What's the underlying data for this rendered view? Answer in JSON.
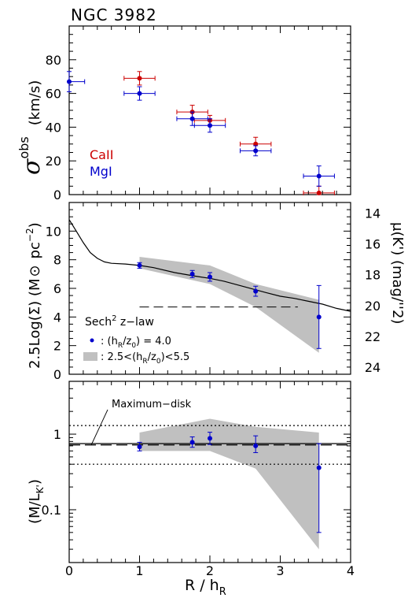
{
  "title": "NGC 3982",
  "x_axis": {
    "label_main": "R / h",
    "label_sub": "R",
    "range": [
      0,
      4
    ],
    "ticks": [
      "0",
      "1",
      "2",
      "3",
      "4"
    ]
  },
  "colors": {
    "CaII": "#cc0000",
    "MgI": "#0000cc",
    "band": "#c0c0c0"
  },
  "chart_data": [
    {
      "type": "scatter",
      "panel": "velocity-dispersion",
      "ylabel_symbol": "σ",
      "ylabel_sup": "obs",
      "ylabel_unit": "(km/s)",
      "ylim": [
        0,
        100
      ],
      "yticks": [
        "0",
        "20",
        "40",
        "60",
        "80"
      ],
      "legend": {
        "placement": "bottom-left",
        "items": [
          "CaII",
          "MgI"
        ]
      },
      "series": [
        {
          "name": "CaII",
          "points": [
            {
              "x": 1.0,
              "y": 69,
              "xerr": 0.22,
              "yerr": 4
            },
            {
              "x": 1.75,
              "y": 49,
              "xerr": 0.22,
              "yerr": 4
            },
            {
              "x": 2.0,
              "y": 44,
              "xerr": 0.22,
              "yerr": 3
            },
            {
              "x": 2.65,
              "y": 30,
              "xerr": 0.22,
              "yerr": 4
            },
            {
              "x": 3.55,
              "y": 1,
              "xerr": 0.22,
              "yerr": 4
            }
          ]
        },
        {
          "name": "MgI",
          "points": [
            {
              "x": 0.0,
              "y": 67,
              "xerr": 0.22,
              "yerr": 6
            },
            {
              "x": 1.0,
              "y": 60,
              "xerr": 0.22,
              "yerr": 4
            },
            {
              "x": 1.75,
              "y": 45,
              "xerr": 0.22,
              "yerr": 4
            },
            {
              "x": 2.0,
              "y": 41,
              "xerr": 0.22,
              "yerr": 4
            },
            {
              "x": 2.65,
              "y": 26,
              "xerr": 0.22,
              "yerr": 3
            },
            {
              "x": 3.55,
              "y": 11,
              "xerr": 0.22,
              "yerr": 6
            }
          ]
        }
      ]
    },
    {
      "type": "line",
      "panel": "surface-density",
      "ylabel": "2.5Log(Σ)  (M",
      "ylabel_sun": "⊙",
      "ylabel_end": "pc",
      "ylabel_exp": "−2",
      "ylabel_close": ")",
      "ylim": [
        0,
        12
      ],
      "yticks": [
        "0",
        "2",
        "4",
        "6",
        "8",
        "10"
      ],
      "y2label": "μ(K')  (mag/''2)",
      "y2ticks": [
        "14",
        "16",
        "18",
        "20",
        "22",
        "24"
      ],
      "y2values": [
        14,
        16,
        18,
        20,
        22,
        24
      ],
      "profile_x": [
        0.0,
        0.1,
        0.2,
        0.3,
        0.4,
        0.5,
        0.6,
        0.8,
        1.0,
        1.2,
        1.5,
        1.8,
        2.0,
        2.2,
        2.5,
        2.8,
        3.0,
        3.2,
        3.4,
        3.6,
        3.8,
        4.0
      ],
      "profile_y": [
        10.8,
        10.0,
        9.2,
        8.5,
        8.1,
        7.85,
        7.75,
        7.7,
        7.6,
        7.45,
        7.1,
        6.85,
        6.7,
        6.5,
        6.1,
        5.7,
        5.45,
        5.3,
        5.1,
        4.9,
        4.6,
        4.4
      ],
      "dashed_level": {
        "y": 4.7,
        "x_range": [
          1.0,
          3.25
        ]
      },
      "band_x": [
        1.0,
        2.0,
        2.65,
        3.55
      ],
      "band_upper": [
        8.2,
        7.6,
        6.3,
        5.2
      ],
      "band_lower": [
        7.4,
        6.3,
        4.7,
        1.5
      ],
      "points": [
        {
          "x": 1.0,
          "y": 7.6,
          "yerr": 0.2
        },
        {
          "x": 1.75,
          "y": 7.0,
          "yerr": 0.25
        },
        {
          "x": 2.0,
          "y": 6.8,
          "yerr": 0.3
        },
        {
          "x": 2.65,
          "y": 5.8,
          "yerr": 0.35
        },
        {
          "x": 3.55,
          "y": 4.0,
          "yerr": 2.2
        }
      ],
      "legend": {
        "title": "Sech",
        "title_sup": "2",
        "title_end": " z−law",
        "point_label": ": (h",
        "point_label_sub1": "R",
        "point_label_mid": "/z",
        "point_label_sub2": "0",
        "point_label_end": ") = 4.0",
        "band_label": ": 2.5<(h",
        "band_label_sub1": "R",
        "band_label_mid": "/z",
        "band_label_sub2": "0",
        "band_label_end": ")<5.5"
      }
    },
    {
      "type": "scatter",
      "panel": "mass-to-light",
      "ylabel": "(M/L",
      "ylabel_sub": "K'",
      "ylabel_close": ")",
      "yscale": "log",
      "ylim": [
        0.02,
        5
      ],
      "yticks": [
        "0.1",
        "1"
      ],
      "ytick_values": [
        0.1,
        1
      ],
      "annotation": "Maximum−disk",
      "solid_level": 0.75,
      "dashed_level": 0.72,
      "dotted_levels": [
        1.3,
        0.4
      ],
      "band_x": [
        1.0,
        2.0,
        2.65,
        3.55
      ],
      "band_upper": [
        1.05,
        1.6,
        1.25,
        1.05
      ],
      "band_lower": [
        0.6,
        0.6,
        0.35,
        0.03
      ],
      "points": [
        {
          "x": 1.0,
          "y": 0.68,
          "ylo": 0.6,
          "yhi": 0.78
        },
        {
          "x": 1.75,
          "y": 0.78,
          "ylo": 0.67,
          "yhi": 0.92
        },
        {
          "x": 2.0,
          "y": 0.88,
          "ylo": 0.73,
          "yhi": 1.06
        },
        {
          "x": 2.65,
          "y": 0.7,
          "ylo": 0.57,
          "yhi": 0.95
        },
        {
          "x": 3.55,
          "y": 0.36,
          "ylo": 0.05,
          "yhi": 0.75
        }
      ]
    }
  ]
}
